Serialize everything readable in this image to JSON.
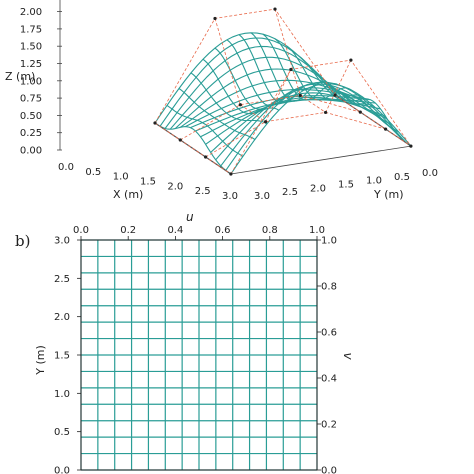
{
  "panels": [
    {
      "label": "",
      "chart_data": {
        "type": "surface3d",
        "title": "",
        "xlabel": "X (m)",
        "ylabel": "Y (m)",
        "zlabel": "Z (m)",
        "x_ticks": [
          "0.0",
          "0.5",
          "1.0",
          "1.5",
          "2.0",
          "2.5",
          "3.0"
        ],
        "y_ticks": [
          "3.0",
          "2.5",
          "2.0",
          "1.5",
          "1.0",
          "0.5",
          "0.0"
        ],
        "z_ticks": [
          "0.00",
          "0.25",
          "0.50",
          "0.75",
          "1.00",
          "1.25",
          "1.50",
          "1.75",
          "2.00"
        ],
        "xlim": [
          0,
          3
        ],
        "ylim": [
          0,
          3
        ],
        "zlim": [
          0,
          2
        ],
        "surface": "doubly curved saddle-shaped net (NURBS surface) spanning X 0–3 m, Y 0–3 m",
        "grid_lines_per_direction": 15,
        "surface_color": "#2a9d96",
        "control_net_color": "#e8694a",
        "control_net_style": "dashed",
        "control_points_color": "#222222"
      }
    },
    {
      "label": "b)",
      "chart_data": {
        "type": "grid",
        "title": "",
        "xlabel": "",
        "ylabel": "Y (m)",
        "top_xlabel": "u",
        "right_ylabel": "v",
        "top_x_ticks": [
          "0.0",
          "0.2",
          "0.4",
          "0.6",
          "0.8",
          "1.0"
        ],
        "right_y_ticks": [
          "0.0",
          "0.2",
          "0.4",
          "0.6",
          "0.8",
          "1.0"
        ],
        "left_y_ticks": [
          "0.0",
          "0.5",
          "1.0",
          "1.5",
          "2.0",
          "2.5",
          "3.0"
        ],
        "u_range": [
          0,
          1
        ],
        "v_range": [
          0,
          1
        ],
        "y_range_m": [
          0,
          3
        ],
        "grid_divisions": 14,
        "grid_color": "#2a9d96"
      }
    }
  ]
}
